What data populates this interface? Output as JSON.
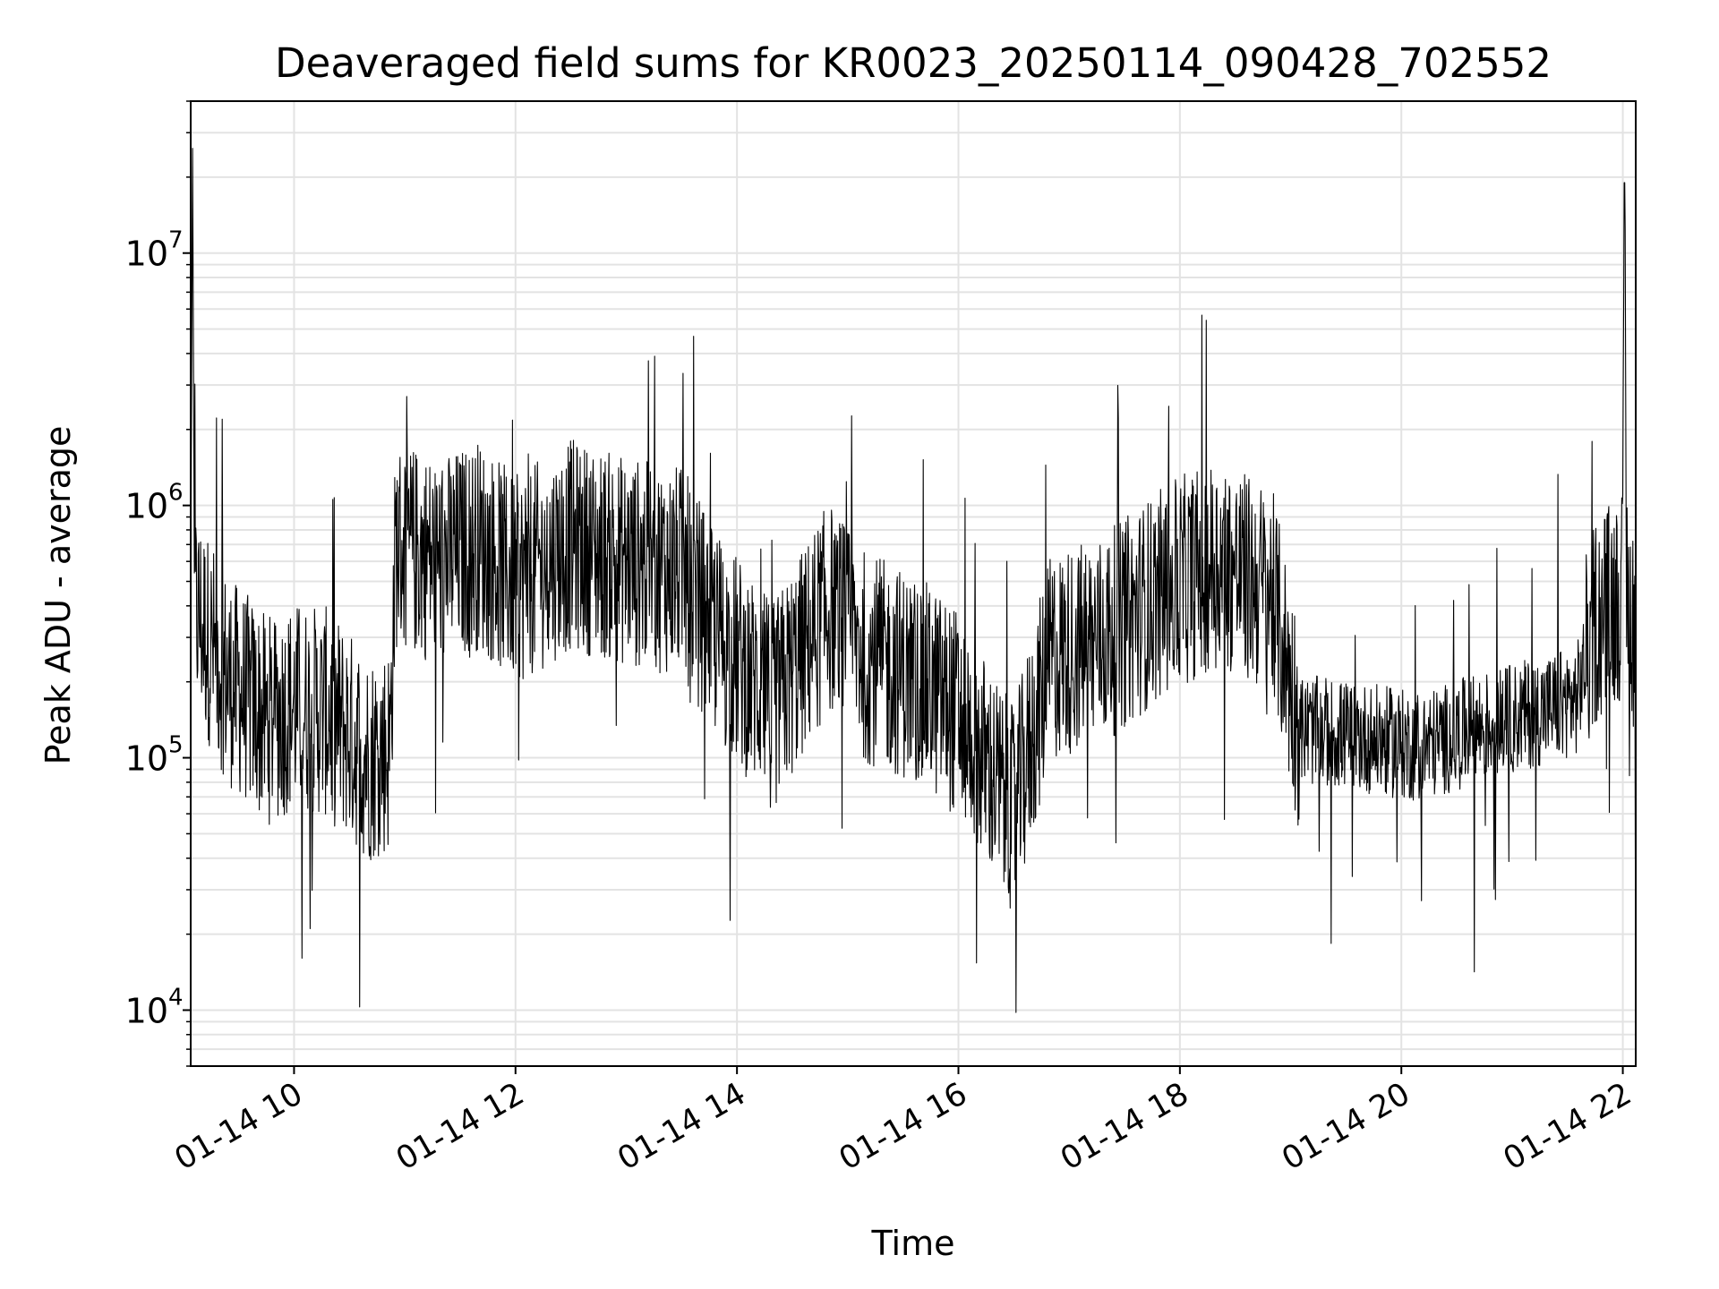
{
  "chart_data": {
    "type": "line",
    "title": "Deaveraged field sums for KR0023_20250114_090428_702552",
    "xlabel": "Time",
    "ylabel": "Peak ADU - average",
    "yscale": "log",
    "ylim": [
      6000,
      40000000
    ],
    "xlim": [
      "2025-01-14 09:04",
      "2025-01-14 22:07"
    ],
    "grid": true,
    "line_color": "#000000",
    "grid_color": "#e3e3e3",
    "x_ticks": [
      "2025-01-14 10:00",
      "2025-01-14 12:00",
      "2025-01-14 14:00",
      "2025-01-14 16:00",
      "2025-01-14 18:00",
      "2025-01-14 20:00",
      "2025-01-14 22:00"
    ],
    "x_tick_labels": [
      "01-14 10",
      "01-14 12",
      "01-14 14",
      "01-14 16",
      "01-14 18",
      "01-14 20",
      "01-14 22"
    ],
    "y_ticks": [
      10000,
      100000,
      1000000,
      10000000
    ],
    "y_tick_labels": [
      {
        "base": "10",
        "exp": "4"
      },
      {
        "base": "10",
        "exp": "5"
      },
      {
        "base": "10",
        "exp": "6"
      },
      {
        "base": "10",
        "exp": "7"
      }
    ],
    "series": [
      {
        "points": [
          [
            "2025-01-14 09:05",
            26000000
          ],
          [
            "2025-01-14 09:06",
            400000
          ],
          [
            "2025-01-14 09:15",
            280000
          ],
          [
            "2025-01-14 09:25",
            200000
          ],
          [
            "2025-01-14 09:35",
            170000
          ],
          [
            "2025-01-14 09:45",
            140000
          ],
          [
            "2025-01-14 10:00",
            160000
          ],
          [
            "2025-01-14 10:20",
            150000
          ],
          [
            "2025-01-14 10:40",
            100000
          ],
          [
            "2025-01-14 10:52",
            110000
          ],
          [
            "2025-01-14 10:55",
            700000
          ],
          [
            "2025-01-14 11:20",
            600000
          ],
          [
            "2025-01-14 11:40",
            700000
          ],
          [
            "2025-01-14 12:00",
            500000
          ],
          [
            "2025-01-14 12:30",
            700000
          ],
          [
            "2025-01-14 13:00",
            600000
          ],
          [
            "2025-01-14 13:30",
            550000
          ],
          [
            "2025-01-14 13:50",
            300000
          ],
          [
            "2025-01-14 14:20",
            160000
          ],
          [
            "2025-01-14 14:50",
            400000
          ],
          [
            "2025-01-14 15:10",
            250000
          ],
          [
            "2025-01-14 15:40",
            200000
          ],
          [
            "2025-01-14 16:00",
            150000
          ],
          [
            "2025-01-14 16:30",
            60000
          ],
          [
            "2025-01-14 16:50",
            250000
          ],
          [
            "2025-01-14 17:20",
            300000
          ],
          [
            "2025-01-14 17:50",
            450000
          ],
          [
            "2025-01-14 18:20",
            600000
          ],
          [
            "2025-01-14 18:50",
            450000
          ],
          [
            "2025-01-14 19:05",
            130000
          ],
          [
            "2025-01-14 19:40",
            120000
          ],
          [
            "2025-01-14 20:10",
            110000
          ],
          [
            "2025-01-14 20:40",
            130000
          ],
          [
            "2025-01-14 21:10",
            150000
          ],
          [
            "2025-01-14 21:35",
            170000
          ],
          [
            "2025-01-14 21:45",
            350000
          ],
          [
            "2025-01-14 22:00",
            450000
          ],
          [
            "2025-01-14 22:01",
            19000000
          ],
          [
            "2025-01-14 22:02",
            500000
          ],
          [
            "2025-01-14 22:07",
            300000
          ]
        ]
      }
    ]
  }
}
